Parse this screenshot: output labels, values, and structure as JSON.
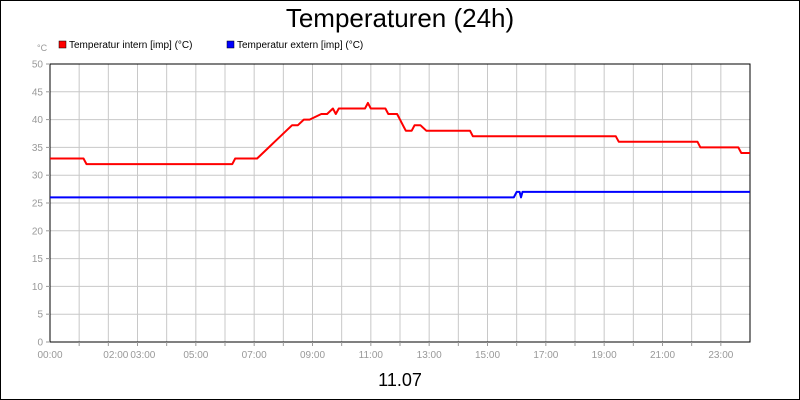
{
  "chart_data": {
    "type": "line",
    "title": "Temperaturen (24h)",
    "y_unit": "°C",
    "xlabel": "11.07",
    "xlim": [
      0,
      24
    ],
    "ylim": [
      0,
      50
    ],
    "y_ticks": [
      0,
      5,
      10,
      15,
      20,
      25,
      30,
      35,
      40,
      45,
      50
    ],
    "x_ticks": [
      {
        "value": 0,
        "label": "00:00"
      },
      {
        "value": 2,
        "label": "02:00"
      },
      {
        "value": 3,
        "label": "03:00"
      },
      {
        "value": 5,
        "label": "05:00"
      },
      {
        "value": 7,
        "label": "07:00"
      },
      {
        "value": 9,
        "label": "09:00"
      },
      {
        "value": 11,
        "label": "11:00"
      },
      {
        "value": 13,
        "label": "13:00"
      },
      {
        "value": 15,
        "label": "15:00"
      },
      {
        "value": 17,
        "label": "17:00"
      },
      {
        "value": 19,
        "label": "19:00"
      },
      {
        "value": 21,
        "label": "21:00"
      },
      {
        "value": 23,
        "label": "23:00"
      }
    ],
    "grid": true,
    "legend_position": "top-left",
    "series": [
      {
        "name": "Temperatur intern [imp] (°C)",
        "color": "#ff0000",
        "x": [
          0,
          1.15,
          1.25,
          6.25,
          6.35,
          7.1,
          7.3,
          7.5,
          7.7,
          7.9,
          8.1,
          8.3,
          8.5,
          8.7,
          8.9,
          9.3,
          9.5,
          9.7,
          9.8,
          9.9,
          10.0,
          10.1,
          10.3,
          10.8,
          10.9,
          11.0,
          11.5,
          11.6,
          11.9,
          12.0,
          12.1,
          12.2,
          12.4,
          12.5,
          12.7,
          12.9,
          13.0,
          14.4,
          14.5,
          19.4,
          19.5,
          22.2,
          22.3,
          23.6,
          23.7,
          24.0
        ],
        "values": [
          33,
          33,
          32,
          32,
          33,
          33,
          34,
          35,
          36,
          37,
          38,
          39,
          39,
          40,
          40,
          41,
          41,
          42,
          41,
          42,
          42,
          42,
          42,
          42,
          43,
          42,
          42,
          41,
          41,
          40,
          39,
          38,
          38,
          39,
          39,
          38,
          38,
          38,
          37,
          37,
          36,
          36,
          35,
          35,
          34,
          34
        ]
      },
      {
        "name": "Temperatur extern [imp] (°C)",
        "color": "#0000ff",
        "x": [
          0,
          15.9,
          16.0,
          16.1,
          16.15,
          16.2,
          24.0
        ],
        "values": [
          26,
          26,
          27,
          27,
          26,
          27,
          27
        ]
      }
    ]
  }
}
